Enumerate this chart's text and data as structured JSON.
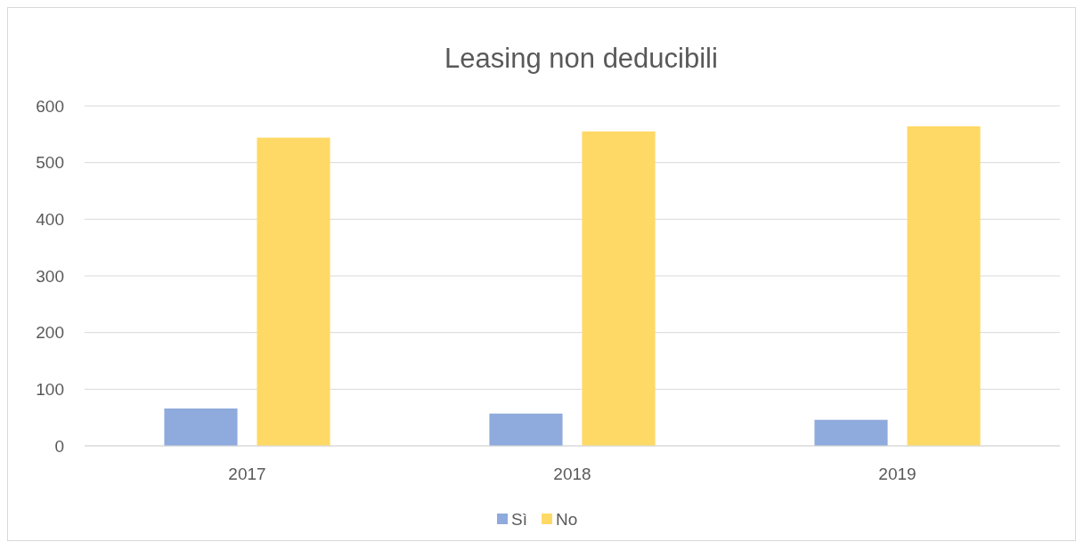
{
  "chart_data": {
    "type": "bar",
    "title": "Leasing non deducibili",
    "categories": [
      "2017",
      "2018",
      "2019"
    ],
    "series": [
      {
        "name": "Sì",
        "color": "#8faadc",
        "values": [
          66,
          57,
          46
        ]
      },
      {
        "name": "No",
        "color": "#ffd966",
        "values": [
          544,
          555,
          564
        ]
      }
    ],
    "ylim": [
      0,
      600
    ],
    "yticks": [
      0,
      100,
      200,
      300,
      400,
      500,
      600
    ],
    "grid": "y",
    "legend": "bottom"
  }
}
